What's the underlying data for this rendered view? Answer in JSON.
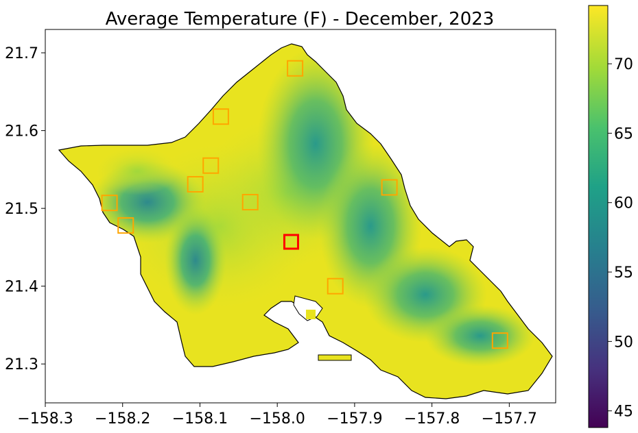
{
  "title": "Average Temperature (F) - December, 2023",
  "map": {
    "x_ticks": [
      {
        "value": -158.3,
        "label": "−158.3"
      },
      {
        "value": -158.2,
        "label": "−158.2"
      },
      {
        "value": -158.1,
        "label": "−158.1"
      },
      {
        "value": -158.0,
        "label": "−158.0"
      },
      {
        "value": -157.9,
        "label": "−157.9"
      },
      {
        "value": -157.8,
        "label": "−157.8"
      },
      {
        "value": -157.7,
        "label": "−157.7"
      }
    ],
    "y_ticks": [
      {
        "value": 21.7,
        "label": "21.7"
      },
      {
        "value": 21.6,
        "label": "21.6"
      },
      {
        "value": 21.5,
        "label": "21.5"
      },
      {
        "value": 21.4,
        "label": "21.4"
      },
      {
        "value": 21.3,
        "label": "21.3"
      }
    ],
    "xlim": [
      -158.3,
      -157.64
    ],
    "ylim": [
      21.25,
      21.73
    ],
    "stations": [
      {
        "lon": -157.977,
        "lat": 21.68,
        "highlight": false
      },
      {
        "lon": -158.073,
        "lat": 21.618,
        "highlight": false
      },
      {
        "lon": -158.086,
        "lat": 21.555,
        "highlight": false
      },
      {
        "lon": -158.106,
        "lat": 21.531,
        "highlight": false
      },
      {
        "lon": -158.035,
        "lat": 21.508,
        "highlight": false
      },
      {
        "lon": -157.855,
        "lat": 21.527,
        "highlight": false
      },
      {
        "lon": -158.217,
        "lat": 21.507,
        "highlight": false
      },
      {
        "lon": -158.196,
        "lat": 21.478,
        "highlight": false
      },
      {
        "lon": -157.982,
        "lat": 21.457,
        "highlight": true
      },
      {
        "lon": -157.925,
        "lat": 21.4,
        "highlight": false
      },
      {
        "lon": -157.712,
        "lat": 21.33,
        "highlight": false
      }
    ],
    "station_color": "#ffa500",
    "highlight_color": "#ff0000",
    "coast_color": "#000000"
  },
  "colorbar": {
    "ticks": [
      {
        "value": 45,
        "label": "45"
      },
      {
        "value": 50,
        "label": "50"
      },
      {
        "value": 55,
        "label": "55"
      },
      {
        "value": 60,
        "label": "60"
      },
      {
        "value": 65,
        "label": "65"
      },
      {
        "value": 70,
        "label": "70"
      }
    ],
    "range": [
      43.8,
      74.2
    ],
    "colormap": "viridis",
    "stops": [
      "#440154",
      "#46327e",
      "#365c8d",
      "#277f8e",
      "#1fa187",
      "#4ac16d",
      "#a0da39",
      "#fde725"
    ]
  }
}
